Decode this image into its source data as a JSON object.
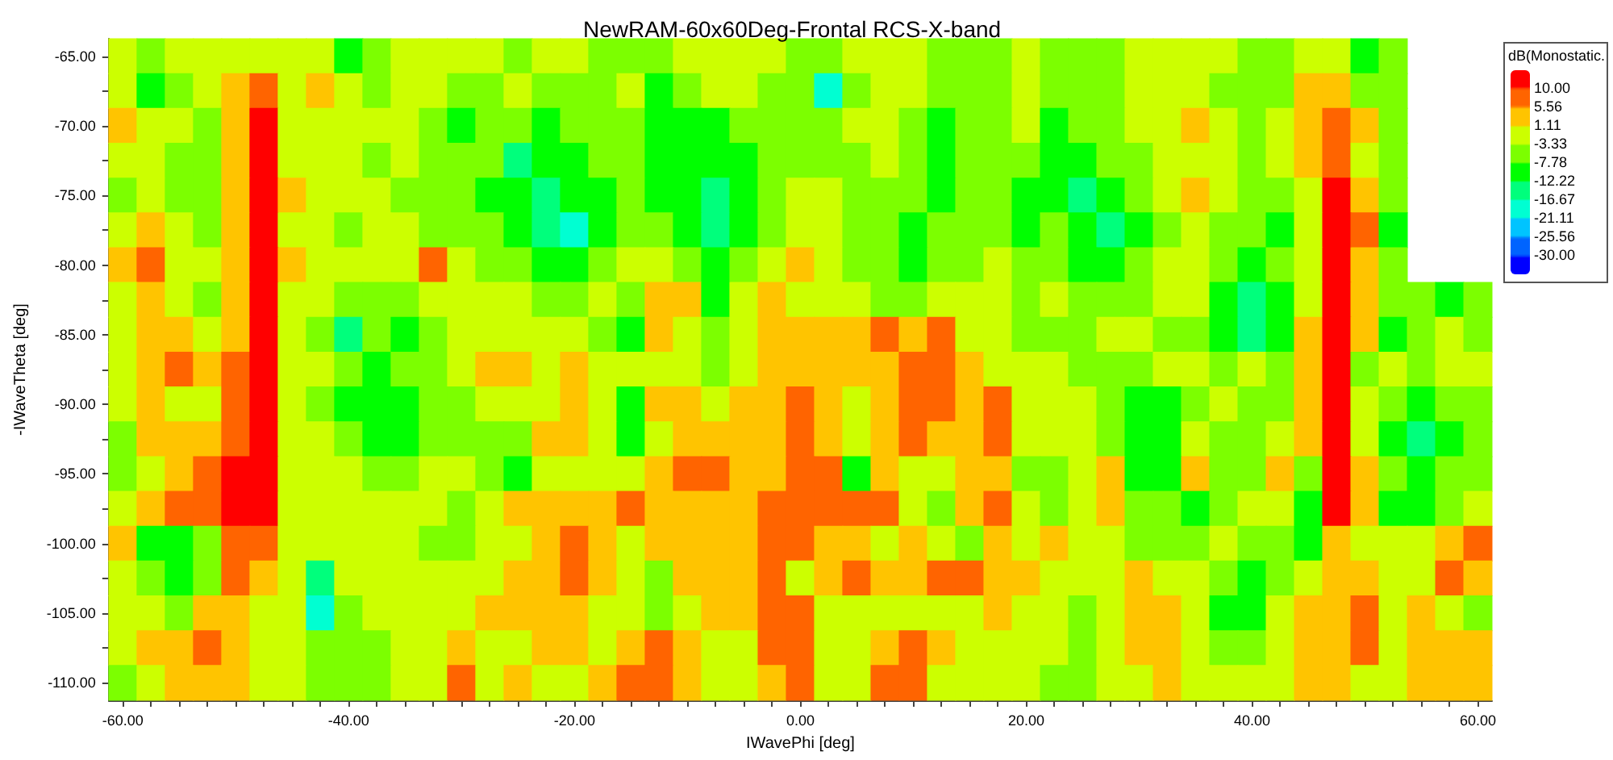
{
  "chart_data": {
    "type": "heatmap",
    "title": "NewRAM-60x60Deg-Frontal RCS-X-band",
    "xlabel": "IWavePhi [deg]",
    "ylabel": "-IWaveTheta [deg]",
    "clabel": "dB(Monostatic.",
    "categories": [
      "-60.00",
      null,
      null,
      null,
      null,
      null,
      null,
      null,
      "-40.00",
      null,
      null,
      null,
      null,
      null,
      null,
      null,
      "-20.00",
      null,
      null,
      null,
      null,
      null,
      null,
      null,
      "0.00",
      null,
      null,
      null,
      null,
      null,
      null,
      null,
      "20.00",
      null,
      null,
      null,
      null,
      null,
      null,
      null,
      "40.00",
      null,
      null,
      null,
      null,
      null,
      null,
      null,
      "60.00"
    ],
    "y_categories": [
      "-65.00",
      null,
      "-70.00",
      null,
      "-75.00",
      null,
      "-80.00",
      null,
      "-85.00",
      null,
      "-90.00",
      null,
      "-95.00",
      null,
      "-100.00",
      null,
      "-105.00",
      null,
      "-110.00"
    ],
    "clim": [
      -34.44,
      14.44
    ],
    "cticks": [
      {
        "value": -30,
        "label": "-30.00"
      },
      -25.56,
      -21.11,
      -16.67,
      -12.22,
      -7.78,
      -3.33,
      1.11,
      5.56,
      {
        "value": 10,
        "label": "10.00"
      }
    ],
    "cells": [
      [
        -1,
        -5,
        -1,
        -1,
        -1,
        -1,
        -1,
        -1,
        -10,
        -5,
        -1,
        -1,
        -1,
        -1,
        -5,
        -1,
        -1,
        -5,
        -5,
        -5,
        -1,
        -1,
        -1,
        -1,
        -5,
        -5,
        -1,
        -1,
        -1,
        -5,
        -5,
        -5,
        -1,
        -5,
        -5,
        -5,
        -1,
        -1,
        -1,
        -1,
        -5,
        -5,
        -1,
        -1,
        -10,
        -5,
        null,
        null,
        null
      ],
      [
        -1,
        -10,
        -5,
        -1,
        3,
        7,
        -1,
        3,
        -1,
        -5,
        -1,
        -1,
        -5,
        -5,
        -1,
        -5,
        -5,
        -5,
        -1,
        -10,
        -5,
        -1,
        -1,
        -5,
        -5,
        -18,
        -5,
        -1,
        -1,
        -5,
        -5,
        -5,
        -1,
        -5,
        -5,
        -5,
        -1,
        -1,
        -1,
        -5,
        -5,
        -5,
        3,
        3,
        -5,
        -5,
        null,
        null,
        null
      ],
      [
        3,
        -1,
        -1,
        -5,
        3,
        12,
        -1,
        -1,
        -1,
        -1,
        -1,
        -5,
        -10,
        -5,
        -5,
        -10,
        -5,
        -5,
        -5,
        -10,
        -10,
        -10,
        -5,
        -5,
        -5,
        -5,
        -1,
        -1,
        -5,
        -10,
        -5,
        -5,
        -1,
        -10,
        -5,
        -5,
        -1,
        -1,
        3,
        -1,
        -5,
        -1,
        3,
        7,
        3,
        -5,
        null,
        null,
        null
      ],
      [
        -1,
        -1,
        -5,
        -5,
        3,
        12,
        -1,
        -1,
        -1,
        -5,
        -1,
        -5,
        -5,
        -5,
        -14,
        -10,
        -10,
        -5,
        -5,
        -10,
        -10,
        -10,
        -10,
        -5,
        -5,
        -5,
        -5,
        -1,
        -5,
        -10,
        -5,
        -5,
        -5,
        -10,
        -10,
        -5,
        -5,
        -1,
        -1,
        -1,
        -5,
        -1,
        3,
        7,
        -1,
        -5,
        null,
        null,
        null
      ],
      [
        -5,
        -1,
        -5,
        -5,
        3,
        12,
        3,
        -1,
        -1,
        -1,
        -5,
        -5,
        -5,
        -10,
        -10,
        -14,
        -10,
        -10,
        -5,
        -10,
        -10,
        -14,
        -10,
        -5,
        -1,
        -1,
        -5,
        -5,
        -5,
        -10,
        -5,
        -5,
        -10,
        -10,
        -14,
        -10,
        -5,
        -1,
        3,
        -1,
        -5,
        -5,
        -1,
        12,
        3,
        -5,
        null,
        null,
        null
      ],
      [
        -1,
        3,
        -1,
        -5,
        3,
        12,
        -1,
        -1,
        -5,
        -1,
        -1,
        -5,
        -5,
        -5,
        -10,
        -14,
        -18,
        -10,
        -5,
        -5,
        -10,
        -14,
        -10,
        -5,
        -1,
        -1,
        -5,
        -5,
        -10,
        -5,
        -5,
        -5,
        -10,
        -5,
        -10,
        -14,
        -10,
        -5,
        -1,
        -5,
        -5,
        -10,
        -1,
        12,
        7,
        -10,
        null,
        null,
        null
      ],
      [
        3,
        7,
        -1,
        -1,
        3,
        12,
        3,
        -1,
        -1,
        -1,
        -1,
        7,
        -1,
        -5,
        -5,
        -10,
        -10,
        -5,
        -1,
        -1,
        -5,
        -10,
        -5,
        -1,
        3,
        -1,
        -5,
        -5,
        -10,
        -5,
        -5,
        -1,
        -5,
        -5,
        -10,
        -10,
        -5,
        -1,
        -1,
        -5,
        -10,
        -5,
        -1,
        12,
        3,
        -5,
        null,
        null,
        null
      ],
      [
        -1,
        3,
        -1,
        -5,
        3,
        12,
        -1,
        -1,
        -5,
        -5,
        -5,
        -1,
        -1,
        -1,
        -1,
        -5,
        -5,
        -1,
        -5,
        3,
        3,
        -10,
        -1,
        3,
        -1,
        -1,
        -1,
        -5,
        -5,
        -1,
        -1,
        -1,
        -5,
        -1,
        -5,
        -5,
        -5,
        -1,
        -1,
        -10,
        -14,
        -10,
        -1,
        12,
        3,
        -5,
        -5,
        -10,
        -5
      ],
      [
        -1,
        3,
        3,
        -1,
        3,
        12,
        -1,
        -5,
        -14,
        -5,
        -10,
        -5,
        -1,
        -1,
        -1,
        -1,
        -1,
        -5,
        -10,
        3,
        -1,
        -5,
        -1,
        3,
        3,
        3,
        3,
        7,
        3,
        7,
        -1,
        -1,
        -5,
        -5,
        -5,
        -1,
        -1,
        -5,
        -5,
        -10,
        -14,
        -10,
        3,
        12,
        3,
        -10,
        -5,
        -1,
        -5
      ],
      [
        -1,
        3,
        7,
        3,
        7,
        12,
        -1,
        -1,
        -5,
        -10,
        -5,
        -5,
        -1,
        3,
        3,
        -1,
        3,
        -1,
        -1,
        -1,
        -1,
        -5,
        -1,
        3,
        3,
        3,
        3,
        3,
        7,
        7,
        3,
        -1,
        -1,
        -1,
        -5,
        -5,
        -5,
        -1,
        -1,
        -5,
        -1,
        -5,
        3,
        12,
        -5,
        -1,
        -5,
        -1,
        -1
      ],
      [
        -1,
        3,
        -1,
        -1,
        7,
        12,
        -1,
        -5,
        -10,
        -10,
        -10,
        -5,
        -5,
        -1,
        -1,
        -1,
        3,
        -1,
        -10,
        3,
        3,
        -1,
        3,
        3,
        7,
        3,
        -1,
        3,
        7,
        7,
        3,
        7,
        -1,
        -1,
        -1,
        -5,
        -10,
        -10,
        -5,
        -1,
        -5,
        -5,
        3,
        12,
        -1,
        -5,
        -10,
        -5,
        -5
      ],
      [
        -5,
        3,
        3,
        3,
        7,
        12,
        -1,
        -1,
        -5,
        -10,
        -10,
        -5,
        -5,
        -5,
        -5,
        3,
        3,
        -1,
        -10,
        -1,
        3,
        3,
        3,
        3,
        7,
        3,
        -1,
        3,
        7,
        3,
        3,
        7,
        -1,
        -1,
        -1,
        -5,
        -10,
        -10,
        -1,
        -5,
        -5,
        -1,
        3,
        12,
        -1,
        -10,
        -14,
        -10,
        -5
      ],
      [
        -5,
        -1,
        3,
        7,
        12,
        12,
        -1,
        -1,
        -1,
        -5,
        -5,
        -1,
        -1,
        -5,
        -10,
        -1,
        -1,
        -1,
        -1,
        3,
        7,
        7,
        3,
        3,
        7,
        7,
        -10,
        3,
        -1,
        -1,
        3,
        3,
        -5,
        -5,
        -1,
        3,
        -10,
        -10,
        3,
        -5,
        -5,
        3,
        -5,
        12,
        3,
        -5,
        -10,
        -5,
        -5
      ],
      [
        -1,
        3,
        7,
        7,
        12,
        12,
        -1,
        -1,
        -1,
        -1,
        -1,
        -1,
        -5,
        -1,
        3,
        3,
        3,
        3,
        7,
        3,
        3,
        3,
        3,
        7,
        7,
        7,
        7,
        7,
        -1,
        -5,
        3,
        7,
        -1,
        -5,
        -1,
        3,
        -5,
        -5,
        -10,
        -5,
        -1,
        -1,
        -10,
        12,
        3,
        -10,
        -10,
        -5,
        -1
      ],
      [
        3,
        -10,
        -10,
        -5,
        7,
        7,
        -1,
        -1,
        -1,
        -1,
        -1,
        -5,
        -5,
        -1,
        -1,
        3,
        7,
        3,
        -1,
        3,
        3,
        3,
        3,
        7,
        7,
        3,
        3,
        -1,
        3,
        -1,
        -5,
        3,
        -1,
        3,
        -1,
        -1,
        -5,
        -5,
        -5,
        -1,
        -5,
        -5,
        -10,
        3,
        -1,
        -1,
        -1,
        3,
        7
      ],
      [
        -1,
        -5,
        -10,
        -5,
        7,
        3,
        -1,
        -14,
        -1,
        -1,
        -1,
        -1,
        -1,
        -1,
        3,
        3,
        7,
        3,
        -1,
        -5,
        3,
        3,
        3,
        7,
        -1,
        3,
        7,
        3,
        3,
        7,
        7,
        3,
        3,
        -1,
        -1,
        -1,
        3,
        -1,
        -1,
        -5,
        -10,
        -5,
        -1,
        3,
        3,
        -1,
        -1,
        7,
        3
      ],
      [
        -1,
        -1,
        -5,
        3,
        3,
        -1,
        -1,
        -18,
        -5,
        -1,
        -1,
        -1,
        -1,
        3,
        3,
        3,
        3,
        -1,
        -1,
        -5,
        -1,
        3,
        3,
        7,
        7,
        -1,
        -1,
        -1,
        -1,
        -1,
        -1,
        3,
        -1,
        -1,
        -5,
        -1,
        3,
        3,
        -1,
        -10,
        -10,
        -1,
        3,
        3,
        7,
        -1,
        3,
        -1,
        -5
      ],
      [
        -1,
        3,
        3,
        7,
        3,
        -1,
        -1,
        -5,
        -5,
        -5,
        -1,
        -1,
        3,
        -1,
        -1,
        3,
        3,
        -1,
        3,
        7,
        3,
        -1,
        -1,
        7,
        7,
        -1,
        -1,
        3,
        7,
        3,
        -1,
        -1,
        -1,
        -1,
        -5,
        -1,
        3,
        3,
        -1,
        -5,
        -5,
        -1,
        3,
        3,
        7,
        -1,
        3,
        3,
        3
      ],
      [
        -5,
        -1,
        3,
        3,
        3,
        -1,
        -1,
        -5,
        -5,
        -5,
        -1,
        -1,
        7,
        -1,
        3,
        -1,
        -1,
        3,
        7,
        7,
        3,
        -1,
        -1,
        3,
        7,
        -1,
        -1,
        7,
        7,
        -1,
        -1,
        -1,
        -1,
        -5,
        -5,
        -1,
        -1,
        3,
        -1,
        -1,
        -1,
        -1,
        3,
        3,
        -1,
        -1,
        3,
        3,
        3
      ]
    ]
  }
}
